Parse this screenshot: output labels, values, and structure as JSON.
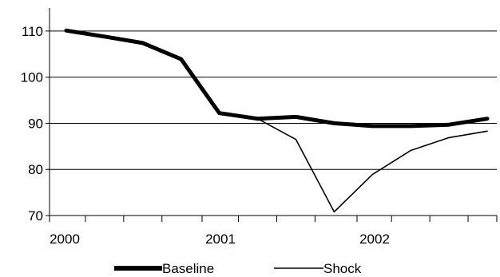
{
  "chart_data": {
    "type": "line",
    "x_ticks": [
      "2000",
      "2001",
      "2002"
    ],
    "y_ticks": [
      "70",
      "80",
      "90",
      "100",
      "110"
    ],
    "ylim": [
      70,
      115
    ],
    "grid": "horizontal",
    "legend_position": "bottom",
    "x": [
      "2000 Q1",
      "2000 Q2",
      "2000 Q3",
      "2000 Q4",
      "2001 Q1",
      "2001 Q2",
      "2001 Q3",
      "2001 Q4",
      "2002 Q1",
      "2002 Q2",
      "2002 Q3",
      "2002 Q4"
    ],
    "series": [
      {
        "name": "Baseline",
        "color": "#000000",
        "stroke": "thick",
        "values": [
          110.1,
          108.8,
          107.4,
          103.9,
          92.2,
          91.0,
          91.4,
          90.0,
          89.4,
          89.4,
          89.7,
          91.0
        ]
      },
      {
        "name": "Shock",
        "color": "#000000",
        "stroke": "thin",
        "values": [
          110.1,
          108.8,
          107.4,
          103.9,
          92.2,
          91.0,
          86.5,
          70.8,
          78.9,
          84.1,
          86.9,
          88.3
        ]
      }
    ]
  }
}
